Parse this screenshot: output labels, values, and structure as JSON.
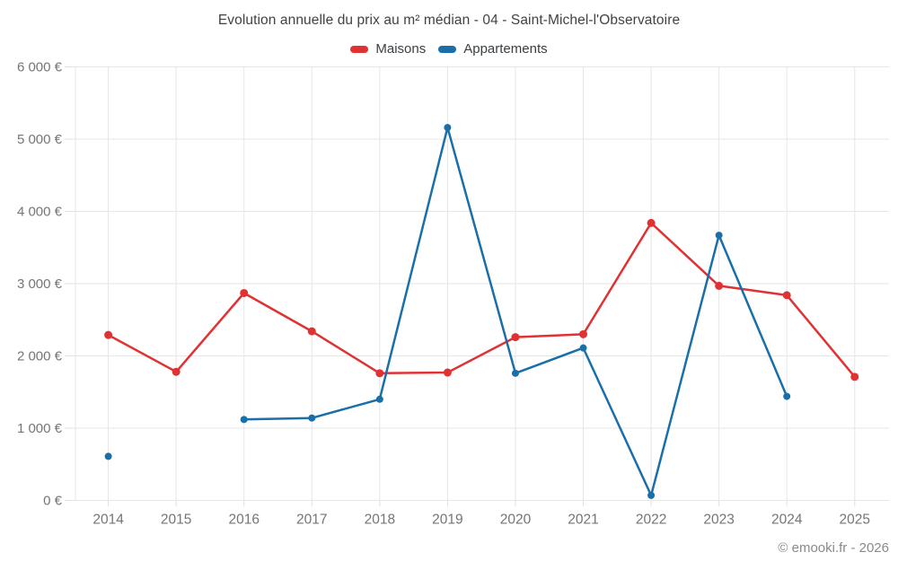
{
  "chart": {
    "title": "Evolution annuelle du prix au m² médian - 04 - Saint-Michel-l'Observatoire",
    "footer": "© emooki.fr - 2026",
    "legend": [
      {
        "label": "Maisons",
        "color": "#e03133"
      },
      {
        "label": "Appartements",
        "color": "#1a6fa9"
      }
    ]
  },
  "chart_data": {
    "type": "line",
    "title": "Evolution annuelle du prix au m² médian - 04 - Saint-Michel-l'Observatoire",
    "xlabel": "",
    "ylabel": "",
    "categories": [
      "2014",
      "2015",
      "2016",
      "2017",
      "2018",
      "2019",
      "2020",
      "2021",
      "2022",
      "2023",
      "2024",
      "2025"
    ],
    "series": [
      {
        "name": "Maisons",
        "color": "#e03133",
        "values": [
          2290,
          1780,
          2870,
          2340,
          1760,
          1770,
          2260,
          2300,
          3840,
          2970,
          2840,
          1710
        ]
      },
      {
        "name": "Appartements",
        "color": "#1a6fa9",
        "values": [
          610,
          null,
          1120,
          1140,
          1400,
          5160,
          1760,
          2110,
          70,
          3670,
          1440,
          null
        ]
      }
    ],
    "ylim": [
      0,
      6000
    ],
    "ytick_step": 1000,
    "ytick_labels": [
      "0 €",
      "1 000 €",
      "2 000 €",
      "3 000 €",
      "4 000 €",
      "5 000 €",
      "6 000 €"
    ],
    "grid": true,
    "legend_position": "top",
    "colors": {
      "gridline": "#e6e6e6",
      "tick": "#e0e0e0",
      "axis_label": "#757575"
    }
  }
}
